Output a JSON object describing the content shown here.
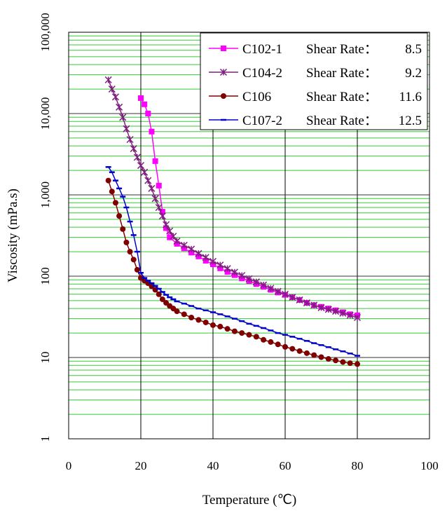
{
  "chart_data": {
    "type": "line",
    "xlabel": "Temperature (℃)",
    "ylabel": "Viscosity (mPa.s)",
    "xlim": [
      0,
      100
    ],
    "ylim": [
      1,
      100000
    ],
    "y_scale": "log",
    "x_ticks": [
      "0",
      "20",
      "40",
      "60",
      "80",
      "100"
    ],
    "y_ticks": [
      {
        "value": 1,
        "label": "1"
      },
      {
        "value": 10,
        "label": "10"
      },
      {
        "value": 100,
        "label": "100"
      },
      {
        "value": 1000,
        "label": "1,000"
      },
      {
        "value": 10000,
        "label": "10,000"
      },
      {
        "value": 100000,
        "label": "100,000"
      }
    ],
    "grid": true,
    "legend_position": "top-right",
    "series": [
      {
        "name": "C102-1",
        "shear_label": "Shear Rate：",
        "shear_value": "8.5",
        "color": "#ff00ff",
        "marker": "square",
        "x": [
          20,
          21,
          22,
          23,
          24,
          25,
          26,
          27,
          28,
          30,
          32,
          34,
          36,
          38,
          40,
          42,
          44,
          46,
          48,
          50,
          52,
          54,
          56,
          58,
          60,
          62,
          64,
          66,
          68,
          70,
          72,
          74,
          76,
          78,
          80
        ],
        "y": [
          15500,
          13000,
          10000,
          6000,
          2600,
          1300,
          620,
          390,
          300,
          250,
          220,
          195,
          175,
          155,
          140,
          125,
          113,
          103,
          94,
          87,
          80,
          74,
          68,
          63,
          59,
          55,
          51,
          47,
          44,
          42,
          40,
          38,
          36,
          34,
          33
        ]
      },
      {
        "name": "C104-2",
        "shear_label": "Shear Rate：",
        "shear_value": "9.2",
        "color": "#7f1f7f",
        "marker": "star",
        "x": [
          11,
          12,
          13,
          14,
          15,
          16,
          17,
          18,
          19,
          20,
          21,
          22,
          23,
          24,
          25,
          26,
          27,
          28,
          29,
          30,
          32,
          34,
          36,
          38,
          40,
          42,
          44,
          46,
          48,
          50,
          52,
          54,
          56,
          58,
          60,
          62,
          64,
          66,
          68,
          70,
          72,
          74,
          76,
          78,
          80
        ],
        "y": [
          26000,
          20000,
          16000,
          12000,
          9000,
          6500,
          4800,
          3700,
          2900,
          2300,
          1900,
          1500,
          1200,
          900,
          700,
          550,
          430,
          360,
          310,
          270,
          240,
          215,
          190,
          170,
          152,
          137,
          124,
          112,
          102,
          93,
          85,
          78,
          71,
          65,
          60,
          55,
          51,
          47,
          44,
          41,
          39,
          37,
          35,
          33,
          31
        ]
      },
      {
        "name": "C106",
        "shear_label": "Shear Rate：",
        "shear_value": "11.6",
        "color": "#800000",
        "marker": "circle",
        "x": [
          11,
          12,
          13,
          14,
          15,
          16,
          17,
          18,
          19,
          20,
          21,
          22,
          23,
          24,
          25,
          26,
          27,
          28,
          29,
          30,
          32,
          34,
          36,
          38,
          40,
          42,
          44,
          46,
          48,
          50,
          52,
          54,
          56,
          58,
          60,
          62,
          64,
          66,
          68,
          70,
          72,
          74,
          76,
          78,
          80
        ],
        "y": [
          1500,
          1100,
          800,
          550,
          380,
          260,
          200,
          160,
          120,
          95,
          88,
          82,
          75,
          68,
          60,
          52,
          47,
          43,
          40,
          37,
          34,
          31,
          29,
          27,
          25,
          24,
          22.5,
          21,
          20,
          19,
          18,
          16.5,
          15.5,
          14.5,
          13.5,
          12.8,
          12,
          11.3,
          10.7,
          10.1,
          9.6,
          9.2,
          8.8,
          8.5,
          8.3
        ]
      },
      {
        "name": "C107-2",
        "shear_label": "Shear Rate：",
        "shear_value": "12.5",
        "color": "#0000cd",
        "marker": "dash",
        "x": [
          11,
          12,
          13,
          14,
          15,
          16,
          17,
          18,
          19,
          20,
          21,
          22,
          23,
          24,
          25,
          26,
          27,
          28,
          29,
          30,
          32,
          34,
          36,
          38,
          40,
          42,
          44,
          46,
          48,
          50,
          52,
          54,
          56,
          58,
          60,
          62,
          64,
          66,
          68,
          70,
          72,
          74,
          76,
          78,
          80
        ],
        "y": [
          2200,
          1900,
          1500,
          1200,
          950,
          700,
          470,
          320,
          200,
          110,
          95,
          88,
          82,
          76,
          70,
          64,
          59,
          55,
          52,
          49,
          46,
          43,
          40,
          38,
          36,
          34,
          32,
          30,
          28,
          26,
          24.5,
          23,
          21.5,
          20,
          19,
          18,
          17,
          16,
          15,
          14.2,
          13.4,
          12.6,
          11.9,
          11.2,
          10.5
        ]
      }
    ]
  }
}
